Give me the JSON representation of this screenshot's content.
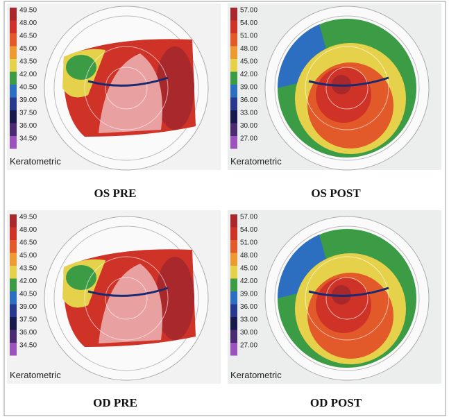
{
  "panels": [
    {
      "caption": "OS PRE",
      "scale_label": "Keratometric",
      "scale": [
        "49.50",
        "48.00",
        "46.50",
        "45.00",
        "43.50",
        "42.00",
        "40.50",
        "39.00",
        "37.50",
        "36.00",
        "34.50"
      ],
      "colors": [
        "#a8282c",
        "#cf3328",
        "#e35a2a",
        "#ee9a33",
        "#e6d24a",
        "#3c9c46",
        "#2c6fc0",
        "#27398e",
        "#191a4c",
        "#4a2a72",
        "#9c52bd"
      ]
    },
    {
      "caption": "OS POST",
      "scale_label": "Keratometric",
      "scale": [
        "57.00",
        "54.00",
        "51.00",
        "48.00",
        "45.00",
        "42.00",
        "39.00",
        "36.00",
        "33.00",
        "30.00",
        "27.00"
      ],
      "colors": [
        "#a8282c",
        "#cf3328",
        "#e35a2a",
        "#ee9a33",
        "#e6d24a",
        "#3c9c46",
        "#2c6fc0",
        "#27398e",
        "#191a4c",
        "#4a2a72",
        "#9c52bd"
      ]
    },
    {
      "caption": "OD PRE",
      "scale_label": "Keratometric",
      "scale": [
        "49.50",
        "48.00",
        "46.50",
        "45.00",
        "43.50",
        "42.00",
        "40.50",
        "39.00",
        "37.50",
        "36.00",
        "34.50"
      ],
      "colors": [
        "#a8282c",
        "#cf3328",
        "#e35a2a",
        "#ee9a33",
        "#e6d24a",
        "#3c9c46",
        "#2c6fc0",
        "#27398e",
        "#191a4c",
        "#4a2a72",
        "#9c52bd"
      ]
    },
    {
      "caption": "OD POST",
      "scale_label": "Keratometric",
      "scale": [
        "57.00",
        "54.00",
        "51.00",
        "48.00",
        "45.00",
        "42.00",
        "39.00",
        "36.00",
        "33.00",
        "30.00",
        "27.00"
      ],
      "colors": [
        "#a8282c",
        "#cf3328",
        "#e35a2a",
        "#ee9a33",
        "#e6d24a",
        "#3c9c46",
        "#2c6fc0",
        "#27398e",
        "#191a4c",
        "#4a2a72",
        "#9c52bd"
      ]
    }
  ]
}
